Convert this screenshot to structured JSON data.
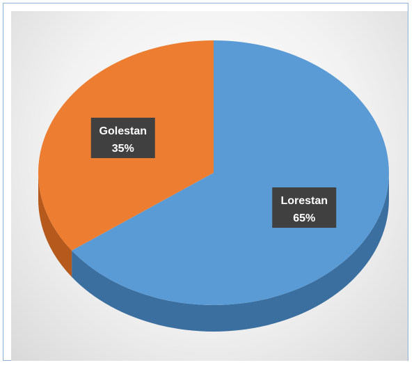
{
  "chart_data": {
    "type": "pie",
    "title": "",
    "style": "3d",
    "categories": [
      "Lorestan",
      "Golestan"
    ],
    "values": [
      65,
      35
    ],
    "value_labels": [
      "65%",
      "35%"
    ],
    "colors": [
      "#5b9bd5",
      "#ed7d31"
    ],
    "side_colors": [
      "#3a6f9f",
      "#b55a1c"
    ],
    "label_box_color": "#404040",
    "legend": "none"
  }
}
